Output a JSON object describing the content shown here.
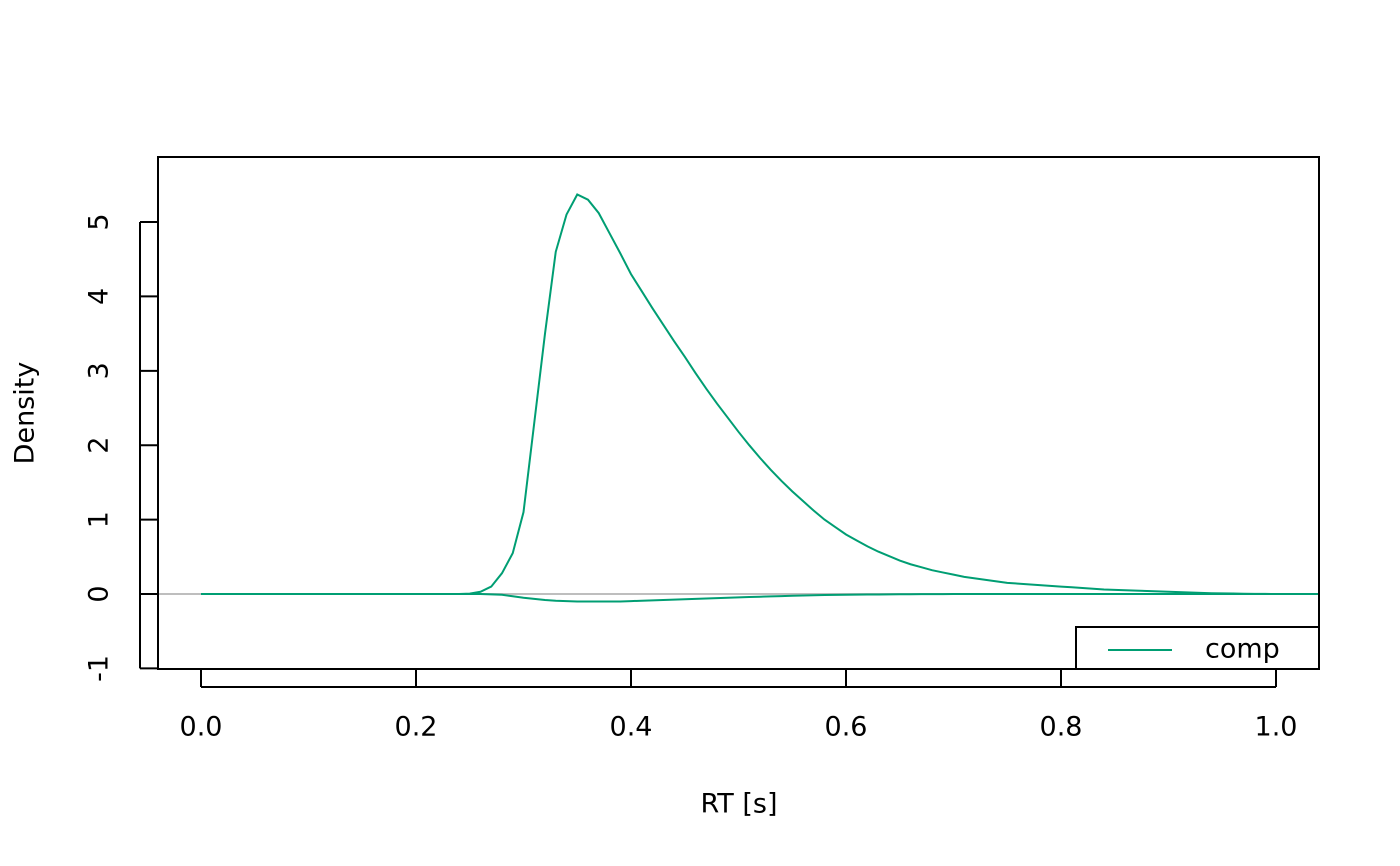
{
  "chart_data": {
    "type": "line",
    "x_label": "RT [s]",
    "y_label": "Density",
    "x": [
      0,
      0.01,
      0.02,
      0.03,
      0.04,
      0.05,
      0.06,
      0.07,
      0.08,
      0.09,
      0.1,
      0.11,
      0.12,
      0.13,
      0.14,
      0.15,
      0.16,
      0.17,
      0.18,
      0.19,
      0.2,
      0.21,
      0.22,
      0.23,
      0.24,
      0.25,
      0.26,
      0.27,
      0.28,
      0.29,
      0.3,
      0.31,
      0.32,
      0.33,
      0.34,
      0.35,
      0.36,
      0.37,
      0.38,
      0.39,
      0.4,
      0.41,
      0.42,
      0.43,
      0.44,
      0.45,
      0.46,
      0.47,
      0.48,
      0.49,
      0.5,
      0.51,
      0.52,
      0.53,
      0.54,
      0.55,
      0.56,
      0.57,
      0.58,
      0.59,
      0.6,
      0.61,
      0.62,
      0.63,
      0.64,
      0.65,
      0.66,
      0.67,
      0.68,
      0.69,
      0.7,
      0.71,
      0.72,
      0.73,
      0.74,
      0.75,
      0.76,
      0.77,
      0.78,
      0.79,
      0.8,
      0.81,
      0.82,
      0.83,
      0.84,
      0.85,
      0.86,
      0.87,
      0.88,
      0.89,
      0.9,
      0.91,
      0.92,
      0.93,
      0.94,
      0.95,
      0.96,
      0.97,
      0.98,
      0.99,
      1,
      1.01,
      1.02,
      1.03,
      1.04
    ],
    "series": [
      {
        "name": "comp",
        "color": "#009e73",
        "values": [
          0,
          0,
          0,
          0,
          0,
          0,
          0,
          0,
          0,
          0,
          0,
          0,
          0,
          0,
          0,
          0,
          0,
          0,
          0,
          0,
          0,
          0,
          0,
          0,
          0,
          0.005,
          0.03,
          0.1,
          0.28,
          0.55,
          1.1,
          2.3,
          3.5,
          4.6,
          5.1,
          5.37,
          5.3,
          5.12,
          4.85,
          4.58,
          4.3,
          4.07,
          3.84,
          3.62,
          3.4,
          3.19,
          2.97,
          2.76,
          2.56,
          2.37,
          2.18,
          2.0,
          1.83,
          1.67,
          1.52,
          1.38,
          1.25,
          1.12,
          1.0,
          0.9,
          0.8,
          0.72,
          0.64,
          0.57,
          0.51,
          0.45,
          0.4,
          0.36,
          0.32,
          0.29,
          0.26,
          0.23,
          0.21,
          0.19,
          0.17,
          0.15,
          0.14,
          0.13,
          0.12,
          0.11,
          0.1,
          0.09,
          0.08,
          0.07,
          0.06,
          0.055,
          0.05,
          0.045,
          0.04,
          0.035,
          0.03,
          0.025,
          0.02,
          0.015,
          0.01,
          0.008,
          0.006,
          0.004,
          0.002,
          0.001,
          0,
          0,
          0,
          0,
          0
        ]
      },
      {
        "color": "#009e73",
        "values": [
          0,
          0,
          0,
          0,
          0,
          0,
          0,
          0,
          0,
          0,
          0,
          0,
          0,
          0,
          0,
          0,
          0,
          0,
          0,
          0,
          0,
          0,
          0,
          0,
          0,
          0,
          0,
          -0.005,
          -0.01,
          -0.03,
          -0.05,
          -0.065,
          -0.08,
          -0.09,
          -0.095,
          -0.1,
          -0.1,
          -0.1,
          -0.1,
          -0.1,
          -0.095,
          -0.09,
          -0.085,
          -0.08,
          -0.075,
          -0.07,
          -0.065,
          -0.06,
          -0.055,
          -0.05,
          -0.045,
          -0.04,
          -0.036,
          -0.032,
          -0.028,
          -0.024,
          -0.02,
          -0.017,
          -0.014,
          -0.012,
          -0.01,
          -0.008,
          -0.007,
          -0.006,
          -0.005,
          -0.004,
          -0.003,
          -0.002,
          -0.002,
          -0.001,
          0,
          0,
          0,
          0,
          0,
          0,
          0,
          0,
          0,
          0,
          0,
          0,
          0,
          0,
          0,
          0,
          0,
          0,
          0,
          0,
          0,
          0,
          0,
          0,
          0,
          0,
          0,
          0,
          0,
          0,
          0,
          0,
          0,
          0,
          0
        ]
      }
    ],
    "hline": 0,
    "hline_color": "#bebebe",
    "xlim": [
      -0.04,
      1.04
    ],
    "ylim": [
      -1.008,
      5.874
    ],
    "xticks": [
      {
        "value": 0,
        "label": "0.0"
      },
      0.2,
      0.4,
      0.6,
      0.8,
      {
        "value": 1,
        "label": "1.0"
      }
    ],
    "yticks": [
      -1,
      0,
      1,
      2,
      3,
      4,
      5
    ],
    "legend": "bottom-right"
  }
}
